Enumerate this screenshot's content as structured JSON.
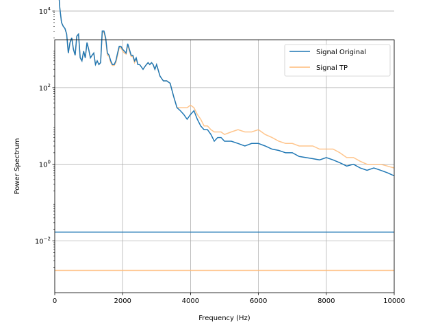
{
  "chart_data": {
    "type": "line",
    "title": "",
    "xlabel": "Frequency (Hz)",
    "ylabel": "Power Spectrum",
    "xlim": [
      0,
      10000
    ],
    "ylim_log10": [
      -3.35,
      3.25
    ],
    "y_scale": "log",
    "grid": true,
    "legend_position": "top-right",
    "x_ticks": [
      0,
      2000,
      4000,
      6000,
      8000,
      10000
    ],
    "x_tick_labels": [
      "0",
      "2000",
      "4000",
      "6000",
      "8000",
      "10000"
    ],
    "y_ticks_exp": [
      4,
      2,
      0,
      -2
    ],
    "y_tick_base": "10",
    "series": [
      {
        "name": "Signal Original",
        "color": "#1f77b4",
        "x": [
          0,
          50,
          100,
          150,
          200,
          250,
          300,
          350,
          400,
          450,
          500,
          550,
          600,
          650,
          700,
          750,
          800,
          850,
          900,
          950,
          1000,
          1050,
          1100,
          1150,
          1200,
          1250,
          1300,
          1350,
          1400,
          1450,
          1500,
          1550,
          1600,
          1650,
          1700,
          1750,
          1800,
          1850,
          1900,
          1950,
          2000,
          2050,
          2100,
          2150,
          2200,
          2250,
          2300,
          2350,
          2400,
          2450,
          2500,
          2550,
          2600,
          2650,
          2700,
          2750,
          2800,
          2850,
          2900,
          2950,
          3000,
          3100,
          3200,
          3300,
          3400,
          3500,
          3600,
          3700,
          3800,
          3900,
          4000,
          4100,
          4200,
          4300,
          4400,
          4500,
          4600,
          4700,
          4800,
          4900,
          5000,
          5200,
          5400,
          5600,
          5800,
          6000,
          6200,
          6400,
          6600,
          6800,
          7000,
          7200,
          7400,
          7600,
          7800,
          8000,
          8200,
          8400,
          8600,
          8800,
          9000,
          9200,
          9400,
          9600,
          9800,
          10000
        ],
        "y": [
          20000,
          60000,
          50000,
          12000,
          5000,
          4000,
          3500,
          2500,
          800,
          1500,
          2000,
          1000,
          700,
          2200,
          2500,
          600,
          500,
          900,
          600,
          1500,
          1000,
          600,
          700,
          800,
          400,
          500,
          400,
          450,
          3000,
          3000,
          2000,
          800,
          700,
          500,
          400,
          400,
          500,
          800,
          1200,
          1200,
          1000,
          900,
          800,
          1400,
          1000,
          700,
          700,
          500,
          600,
          400,
          400,
          350,
          300,
          350,
          400,
          450,
          400,
          450,
          400,
          300,
          400,
          200,
          150,
          150,
          130,
          60,
          30,
          25,
          20,
          15,
          20,
          25,
          15,
          10,
          8,
          8,
          6,
          4,
          5,
          5,
          4,
          4,
          3.5,
          3,
          3.5,
          3.5,
          3,
          2.5,
          2.3,
          2,
          2,
          1.6,
          1.5,
          1.4,
          1.3,
          1.5,
          1.3,
          1.1,
          0.9,
          1,
          0.8,
          0.7,
          0.8,
          0.7,
          0.6,
          0.5
        ],
        "flat_y": 0.017
      },
      {
        "name": "Signal TP",
        "color": "#ffbb78",
        "x": [
          0,
          50,
          100,
          150,
          200,
          250,
          300,
          350,
          400,
          450,
          500,
          550,
          600,
          650,
          700,
          750,
          800,
          850,
          900,
          950,
          1000,
          1050,
          1100,
          1150,
          1200,
          1250,
          1300,
          1350,
          1400,
          1450,
          1500,
          1550,
          1600,
          1650,
          1700,
          1750,
          1800,
          1850,
          1900,
          1950,
          2000,
          2050,
          2100,
          2150,
          2200,
          2250,
          2300,
          2350,
          2400,
          2450,
          2500,
          2550,
          2600,
          2650,
          2700,
          2750,
          2800,
          2850,
          2900,
          2950,
          3000,
          3100,
          3200,
          3300,
          3400,
          3500,
          3600,
          3700,
          3800,
          3900,
          4000,
          4100,
          4200,
          4300,
          4400,
          4500,
          4600,
          4700,
          4800,
          4900,
          5000,
          5200,
          5400,
          5600,
          5800,
          6000,
          6200,
          6400,
          6600,
          6800,
          7000,
          7200,
          7400,
          7600,
          7800,
          8000,
          8200,
          8400,
          8600,
          8800,
          9000,
          9200,
          9400,
          9600,
          9800,
          10000
        ],
        "y": [
          20000,
          60000,
          50000,
          12000,
          5000,
          4000,
          3500,
          2500,
          800,
          1500,
          2000,
          1000,
          700,
          2200,
          2500,
          600,
          500,
          900,
          600,
          1500,
          1000,
          600,
          700,
          800,
          400,
          500,
          400,
          450,
          2800,
          2800,
          1800,
          700,
          650,
          450,
          380,
          380,
          450,
          700,
          1100,
          1100,
          900,
          800,
          750,
          1300,
          900,
          650,
          650,
          450,
          550,
          400,
          400,
          350,
          300,
          350,
          400,
          450,
          400,
          450,
          400,
          300,
          400,
          200,
          150,
          150,
          130,
          60,
          30,
          30,
          30,
          30,
          35,
          30,
          20,
          15,
          10,
          10,
          8,
          7,
          7,
          7,
          6,
          7,
          8,
          7,
          7,
          8,
          6,
          5,
          4,
          3.5,
          3.5,
          3,
          3,
          3,
          2.5,
          2.5,
          2.5,
          2,
          1.5,
          1.5,
          1.2,
          1,
          1,
          1,
          0.9,
          0.8
        ],
        "flat_y": 0.0017
      }
    ]
  }
}
